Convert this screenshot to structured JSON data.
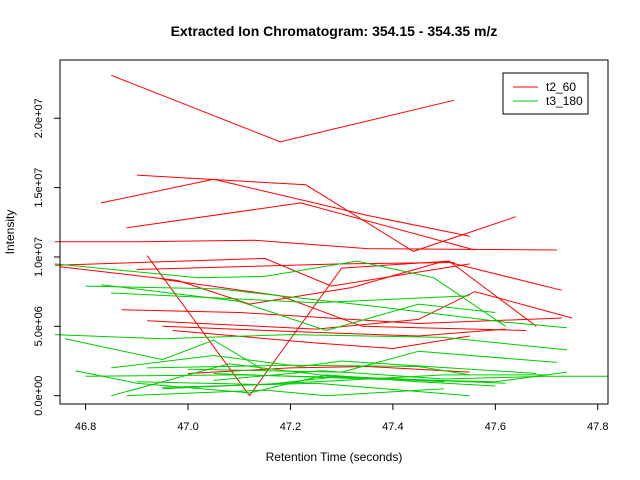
{
  "chart_data": {
    "type": "line",
    "title": "Extracted Ion Chromatogram: 354.15 - 354.35 m/z",
    "xlabel": "Retention Time (seconds)",
    "ylabel": "Intensity",
    "xlim": [
      46.75,
      47.82
    ],
    "ylim": [
      -600000,
      24200000
    ],
    "x_ticks": [
      46.8,
      47.0,
      47.2,
      47.4,
      47.6,
      47.8
    ],
    "x_tick_labels": [
      "46.8",
      "47.0",
      "47.2",
      "47.4",
      "47.6",
      "47.8"
    ],
    "y_ticks": [
      0,
      5000000,
      10000000,
      15000000,
      20000000
    ],
    "y_tick_labels": [
      "0.0e+00",
      "5.0e+06",
      "1.0e+07",
      "1.5e+07",
      "2.0e+07"
    ],
    "grid": false,
    "legend_position": "top-right",
    "series": [
      {
        "name": "t2_60",
        "color": "#ff0000",
        "lines": [
          [
            [
              46.85,
              23100000
            ],
            [
              47.18,
              18300000
            ],
            [
              47.52,
              21300000
            ]
          ],
          [
            [
              46.83,
              13900000
            ],
            [
              47.05,
              15600000
            ],
            [
              47.35,
              13000000
            ],
            [
              47.55,
              11500000
            ]
          ],
          [
            [
              46.9,
              15900000
            ],
            [
              47.23,
              15200000
            ],
            [
              47.44,
              10400000
            ],
            [
              47.64,
              12900000
            ]
          ],
          [
            [
              46.88,
              12100000
            ],
            [
              47.22,
              13900000
            ],
            [
              47.56,
              10500000
            ]
          ],
          [
            [
              46.74,
              11100000
            ],
            [
              46.9,
              11100000
            ],
            [
              47.13,
              11200000
            ],
            [
              47.35,
              10600000
            ],
            [
              47.72,
              10500000
            ]
          ],
          [
            [
              46.92,
              10100000
            ],
            [
              47.12,
              0
            ],
            [
              47.3,
              9200000
            ],
            [
              47.51,
              9700000
            ],
            [
              47.68,
              5000000
            ]
          ],
          [
            [
              46.9,
              9100000
            ],
            [
              47.3,
              9500000
            ],
            [
              47.52,
              9600000
            ]
          ],
          [
            [
              46.74,
              9400000
            ],
            [
              47.15,
              9900000
            ],
            [
              47.28,
              7900000
            ],
            [
              47.55,
              9500000
            ]
          ],
          [
            [
              46.75,
              9300000
            ],
            [
              46.98,
              8300000
            ],
            [
              47.12,
              6600000
            ],
            [
              47.32,
              7800000
            ],
            [
              47.5,
              9700000
            ],
            [
              47.73,
              7600000
            ]
          ],
          [
            [
              46.95,
              8400000
            ],
            [
              47.18,
              7200000
            ],
            [
              47.34,
              5000000
            ],
            [
              47.45,
              4900000
            ],
            [
              47.66,
              4700000
            ]
          ],
          [
            [
              46.87,
              6200000
            ],
            [
              47.1,
              6000000
            ],
            [
              47.45,
              5200000
            ],
            [
              47.73,
              5600000
            ]
          ],
          [
            [
              46.92,
              5400000
            ],
            [
              47.25,
              4800000
            ],
            [
              47.45,
              5500000
            ],
            [
              47.56,
              7500000
            ],
            [
              47.75,
              5600000
            ]
          ],
          [
            [
              46.95,
              5000000
            ],
            [
              47.22,
              4600000
            ],
            [
              47.45,
              4300000
            ],
            [
              47.62,
              4800000
            ]
          ],
          [
            [
              46.97,
              4700000
            ],
            [
              47.25,
              3800000
            ],
            [
              47.4,
              3400000
            ],
            [
              47.55,
              4300000
            ]
          ],
          [
            [
              47.0,
              1600000
            ],
            [
              47.2,
              2000000
            ],
            [
              47.35,
              2100000
            ],
            [
              47.55,
              1700000
            ]
          ]
        ]
      },
      {
        "name": "t3_180",
        "color": "#00cc00",
        "lines": [
          [
            [
              46.74,
              9500000
            ],
            [
              47.02,
              8500000
            ],
            [
              47.15,
              8600000
            ],
            [
              47.33,
              9700000
            ],
            [
              47.48,
              8500000
            ],
            [
              47.62,
              5000000
            ]
          ],
          [
            [
              46.83,
              8000000
            ],
            [
              47.1,
              6800000
            ],
            [
              47.27,
              4700000
            ],
            [
              47.45,
              6600000
            ],
            [
              47.6,
              6000000
            ]
          ],
          [
            [
              46.85,
              7400000
            ],
            [
              47.25,
              6700000
            ],
            [
              47.55,
              7200000
            ]
          ],
          [
            [
              46.8,
              7900000
            ],
            [
              47.06,
              7700000
            ],
            [
              47.35,
              6500000
            ],
            [
              47.62,
              5300000
            ],
            [
              47.74,
              4900000
            ]
          ],
          [
            [
              46.74,
              4400000
            ],
            [
              46.95,
              4100000
            ],
            [
              47.2,
              4400000
            ],
            [
              47.5,
              4200000
            ],
            [
              47.74,
              3300000
            ]
          ],
          [
            [
              46.76,
              4100000
            ],
            [
              46.95,
              2600000
            ],
            [
              47.05,
              4000000
            ],
            [
              47.15,
              1800000
            ]
          ],
          [
            [
              46.85,
              2000000
            ],
            [
              47.05,
              2900000
            ],
            [
              47.22,
              2100000
            ],
            [
              47.3,
              2500000
            ],
            [
              47.68,
              1600000
            ]
          ],
          [
            [
              46.78,
              1800000
            ],
            [
              46.9,
              900000
            ],
            [
              47.12,
              200000
            ],
            [
              47.27,
              1500000
            ],
            [
              47.45,
              1000000
            ],
            [
              47.6,
              700000
            ]
          ],
          [
            [
              46.8,
              1400000
            ],
            [
              47.1,
              1500000
            ],
            [
              47.32,
              1300000
            ],
            [
              47.55,
              1000000
            ]
          ],
          [
            [
              46.85,
              0
            ],
            [
              47.08,
              2300000
            ],
            [
              47.28,
              1400000
            ],
            [
              47.42,
              1200000
            ],
            [
              47.62,
              900000
            ]
          ],
          [
            [
              46.9,
              1000000
            ],
            [
              47.15,
              800000
            ],
            [
              47.3,
              1400000
            ],
            [
              47.5,
              1000000
            ]
          ],
          [
            [
              46.95,
              500000
            ],
            [
              47.25,
              1000000
            ],
            [
              47.5,
              1500000
            ],
            [
              47.7,
              1500000
            ]
          ],
          [
            [
              47.05,
              1100000
            ],
            [
              47.26,
              1800000
            ],
            [
              47.5,
              1200000
            ],
            [
              47.7,
              1400000
            ],
            [
              47.82,
              1400000
            ]
          ],
          [
            [
              46.88,
              0
            ],
            [
              47.15,
              400000
            ],
            [
              47.27,
              0
            ],
            [
              47.5,
              500000
            ]
          ],
          [
            [
              47.05,
              1600000
            ],
            [
              47.35,
              1200000
            ],
            [
              47.6,
              1000000
            ],
            [
              47.74,
              1700000
            ]
          ],
          [
            [
              46.92,
              2000000
            ],
            [
              47.2,
              2200000
            ],
            [
              47.45,
              2100000
            ],
            [
              47.55,
              1500000
            ]
          ],
          [
            [
              47.0,
              1900000
            ],
            [
              47.3,
              1700000
            ],
            [
              47.45,
              3200000
            ],
            [
              47.72,
              2400000
            ]
          ],
          [
            [
              46.95,
              600000
            ],
            [
              47.25,
              900000
            ],
            [
              47.55,
              0
            ]
          ]
        ]
      }
    ]
  }
}
